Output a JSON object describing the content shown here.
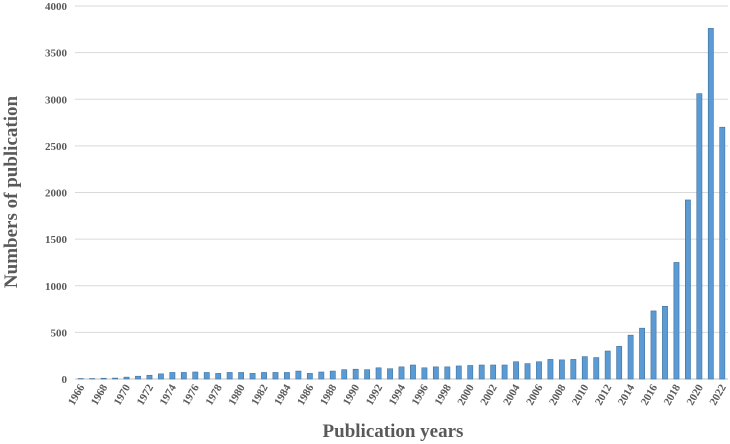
{
  "chart_data": {
    "type": "bar",
    "x_label": "Publication years",
    "y_label": "Numbers of publication",
    "categories": [
      "1966",
      null,
      "1968",
      null,
      "1970",
      null,
      "1972",
      null,
      "1974",
      null,
      "1976",
      null,
      "1978",
      null,
      "1980",
      null,
      "1982",
      null,
      "1984",
      null,
      "1986",
      null,
      "1988",
      null,
      "1990",
      null,
      "1992",
      null,
      "1994",
      null,
      "1996",
      null,
      "1998",
      null,
      "2000",
      null,
      "2002",
      null,
      "2004",
      null,
      "2006",
      null,
      "2008",
      null,
      "2010",
      null,
      "2012",
      null,
      "2014",
      null,
      "2016",
      null,
      "2018",
      null,
      "2020",
      null,
      "2022"
    ],
    "values": [
      5,
      5,
      8,
      10,
      20,
      30,
      40,
      55,
      70,
      70,
      75,
      70,
      60,
      70,
      70,
      60,
      70,
      70,
      70,
      85,
      60,
      75,
      85,
      100,
      105,
      100,
      120,
      110,
      130,
      150,
      120,
      130,
      130,
      140,
      145,
      150,
      150,
      150,
      185,
      165,
      185,
      210,
      205,
      210,
      240,
      230,
      300,
      350,
      470,
      545,
      730,
      780,
      1250,
      1920,
      3060,
      3760,
      2700
    ],
    "color": "#5b9bd5",
    "ylim": [
      0,
      4000
    ],
    "yticks": [
      0,
      500,
      1000,
      1500,
      2000,
      2500,
      3000,
      3500,
      4000
    ],
    "grid": true
  }
}
